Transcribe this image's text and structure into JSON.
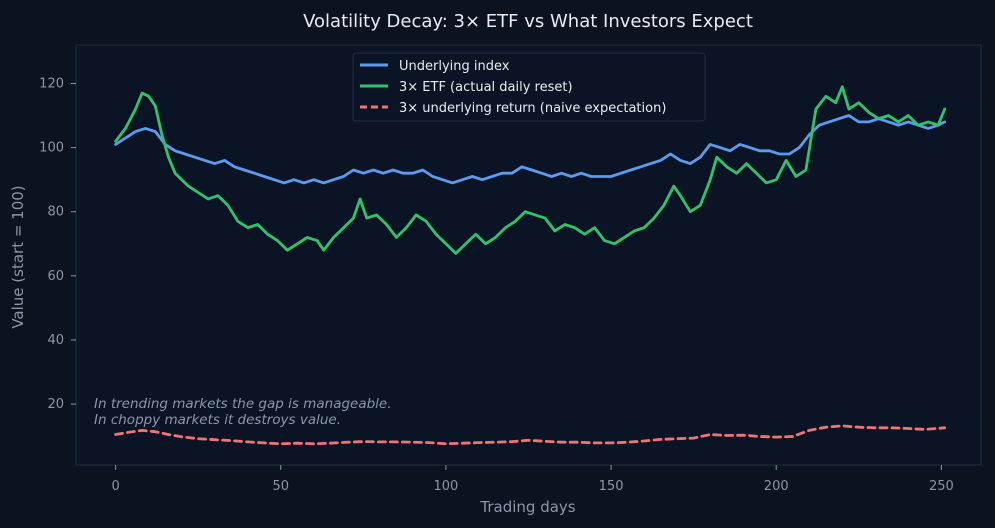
{
  "chart_data": {
    "type": "line",
    "title": "Volatility Decay: 3× ETF vs What Investors Expect",
    "xlabel": "Trading days",
    "ylabel": "Value (start = 100)",
    "xlim": [
      -12,
      262
    ],
    "ylim": [
      1,
      132
    ],
    "xticks": [
      0,
      50,
      100,
      150,
      200,
      250
    ],
    "yticks": [
      20,
      40,
      60,
      80,
      100,
      120
    ],
    "grid": false,
    "legend_position": "top-center",
    "annotation": [
      "In trending markets the gap is manageable.",
      "In choppy markets it destroys value."
    ],
    "colors": {
      "background": "#0b1220",
      "plot_background": "#0b1424",
      "frame": "#1f2d42",
      "text": "#8b97a8",
      "title": "#e6edf3",
      "underlying": "#5b9cf0",
      "etf": "#2fc46b",
      "naive": "#ef7575"
    },
    "series": [
      {
        "name": "Underlying index",
        "style": "solid",
        "points": [
          [
            0,
            101
          ],
          [
            3,
            103
          ],
          [
            6,
            105
          ],
          [
            9,
            106
          ],
          [
            12,
            105
          ],
          [
            15,
            101
          ],
          [
            18,
            99
          ],
          [
            21,
            98
          ],
          [
            24,
            97
          ],
          [
            27,
            96
          ],
          [
            30,
            95
          ],
          [
            33,
            96
          ],
          [
            36,
            94
          ],
          [
            39,
            93
          ],
          [
            42,
            92
          ],
          [
            45,
            91
          ],
          [
            48,
            90
          ],
          [
            51,
            89
          ],
          [
            54,
            90
          ],
          [
            57,
            89
          ],
          [
            60,
            90
          ],
          [
            63,
            89
          ],
          [
            66,
            90
          ],
          [
            69,
            91
          ],
          [
            72,
            93
          ],
          [
            75,
            92
          ],
          [
            78,
            93
          ],
          [
            81,
            92
          ],
          [
            84,
            93
          ],
          [
            87,
            92
          ],
          [
            90,
            92
          ],
          [
            93,
            93
          ],
          [
            96,
            91
          ],
          [
            99,
            90
          ],
          [
            102,
            89
          ],
          [
            105,
            90
          ],
          [
            108,
            91
          ],
          [
            111,
            90
          ],
          [
            114,
            91
          ],
          [
            117,
            92
          ],
          [
            120,
            92
          ],
          [
            123,
            94
          ],
          [
            126,
            93
          ],
          [
            129,
            92
          ],
          [
            132,
            91
          ],
          [
            135,
            92
          ],
          [
            138,
            91
          ],
          [
            141,
            92
          ],
          [
            144,
            91
          ],
          [
            147,
            91
          ],
          [
            150,
            91
          ],
          [
            153,
            92
          ],
          [
            156,
            93
          ],
          [
            159,
            94
          ],
          [
            162,
            95
          ],
          [
            165,
            96
          ],
          [
            168,
            98
          ],
          [
            171,
            96
          ],
          [
            174,
            95
          ],
          [
            177,
            97
          ],
          [
            180,
            101
          ],
          [
            183,
            100
          ],
          [
            186,
            99
          ],
          [
            189,
            101
          ],
          [
            192,
            100
          ],
          [
            195,
            99
          ],
          [
            198,
            99
          ],
          [
            201,
            98
          ],
          [
            204,
            98
          ],
          [
            207,
            100
          ],
          [
            210,
            104
          ],
          [
            213,
            107
          ],
          [
            216,
            108
          ],
          [
            219,
            109
          ],
          [
            222,
            110
          ],
          [
            225,
            108
          ],
          [
            228,
            108
          ],
          [
            231,
            109
          ],
          [
            234,
            108
          ],
          [
            237,
            107
          ],
          [
            240,
            108
          ],
          [
            243,
            107
          ],
          [
            246,
            106
          ],
          [
            249,
            107
          ],
          [
            251,
            108
          ]
        ]
      },
      {
        "name": "3× ETF (actual daily reset)",
        "style": "solid",
        "points": [
          [
            0,
            102
          ],
          [
            3,
            106
          ],
          [
            6,
            112
          ],
          [
            8,
            117
          ],
          [
            10,
            116
          ],
          [
            12,
            113
          ],
          [
            14,
            104
          ],
          [
            16,
            97
          ],
          [
            18,
            92
          ],
          [
            20,
            90
          ],
          [
            22,
            88
          ],
          [
            25,
            86
          ],
          [
            28,
            84
          ],
          [
            31,
            85
          ],
          [
            34,
            82
          ],
          [
            37,
            77
          ],
          [
            40,
            75
          ],
          [
            43,
            76
          ],
          [
            46,
            73
          ],
          [
            49,
            71
          ],
          [
            52,
            68
          ],
          [
            55,
            70
          ],
          [
            58,
            72
          ],
          [
            61,
            71
          ],
          [
            63,
            68
          ],
          [
            66,
            72
          ],
          [
            69,
            75
          ],
          [
            72,
            78
          ],
          [
            74,
            84
          ],
          [
            76,
            78
          ],
          [
            79,
            79
          ],
          [
            82,
            76
          ],
          [
            85,
            72
          ],
          [
            88,
            75
          ],
          [
            91,
            79
          ],
          [
            94,
            77
          ],
          [
            97,
            73
          ],
          [
            100,
            70
          ],
          [
            103,
            67
          ],
          [
            106,
            70
          ],
          [
            109,
            73
          ],
          [
            112,
            70
          ],
          [
            115,
            72
          ],
          [
            118,
            75
          ],
          [
            121,
            77
          ],
          [
            124,
            80
          ],
          [
            127,
            79
          ],
          [
            130,
            78
          ],
          [
            133,
            74
          ],
          [
            136,
            76
          ],
          [
            139,
            75
          ],
          [
            142,
            73
          ],
          [
            145,
            75
          ],
          [
            148,
            71
          ],
          [
            151,
            70
          ],
          [
            154,
            72
          ],
          [
            157,
            74
          ],
          [
            160,
            75
          ],
          [
            163,
            78
          ],
          [
            166,
            82
          ],
          [
            169,
            88
          ],
          [
            171,
            85
          ],
          [
            174,
            80
          ],
          [
            177,
            82
          ],
          [
            180,
            90
          ],
          [
            182,
            97
          ],
          [
            185,
            94
          ],
          [
            188,
            92
          ],
          [
            191,
            95
          ],
          [
            194,
            92
          ],
          [
            197,
            89
          ],
          [
            200,
            90
          ],
          [
            203,
            96
          ],
          [
            206,
            91
          ],
          [
            209,
            93
          ],
          [
            212,
            112
          ],
          [
            215,
            116
          ],
          [
            218,
            114
          ],
          [
            220,
            119
          ],
          [
            222,
            112
          ],
          [
            225,
            114
          ],
          [
            228,
            111
          ],
          [
            231,
            109
          ],
          [
            234,
            110
          ],
          [
            237,
            108
          ],
          [
            240,
            110
          ],
          [
            243,
            107
          ],
          [
            246,
            108
          ],
          [
            249,
            107
          ],
          [
            251,
            112
          ]
        ]
      },
      {
        "name": "3× underlying return (naive expectation)",
        "style": "dashed",
        "points": [
          [
            0,
            10.5
          ],
          [
            4,
            11.2
          ],
          [
            8,
            11.8
          ],
          [
            12,
            11.4
          ],
          [
            16,
            10.5
          ],
          [
            20,
            9.8
          ],
          [
            25,
            9.2
          ],
          [
            30,
            8.9
          ],
          [
            35,
            8.6
          ],
          [
            40,
            8.2
          ],
          [
            45,
            7.9
          ],
          [
            50,
            7.6
          ],
          [
            55,
            7.8
          ],
          [
            60,
            7.6
          ],
          [
            65,
            7.8
          ],
          [
            70,
            8.1
          ],
          [
            75,
            8.3
          ],
          [
            80,
            8.2
          ],
          [
            85,
            8.2
          ],
          [
            90,
            8.1
          ],
          [
            95,
            8.0
          ],
          [
            100,
            7.6
          ],
          [
            105,
            7.8
          ],
          [
            110,
            8.0
          ],
          [
            115,
            8.1
          ],
          [
            120,
            8.3
          ],
          [
            125,
            8.7
          ],
          [
            130,
            8.4
          ],
          [
            135,
            8.1
          ],
          [
            140,
            8.1
          ],
          [
            145,
            7.9
          ],
          [
            150,
            7.9
          ],
          [
            155,
            8.1
          ],
          [
            160,
            8.5
          ],
          [
            165,
            9.0
          ],
          [
            170,
            9.2
          ],
          [
            175,
            9.4
          ],
          [
            180,
            10.5
          ],
          [
            185,
            10.2
          ],
          [
            190,
            10.3
          ],
          [
            195,
            9.9
          ],
          [
            200,
            9.7
          ],
          [
            205,
            9.9
          ],
          [
            210,
            11.8
          ],
          [
            215,
            12.8
          ],
          [
            220,
            13.2
          ],
          [
            225,
            12.8
          ],
          [
            230,
            12.6
          ],
          [
            235,
            12.6
          ],
          [
            240,
            12.4
          ],
          [
            245,
            12.1
          ],
          [
            251,
            12.6
          ]
        ]
      }
    ]
  }
}
